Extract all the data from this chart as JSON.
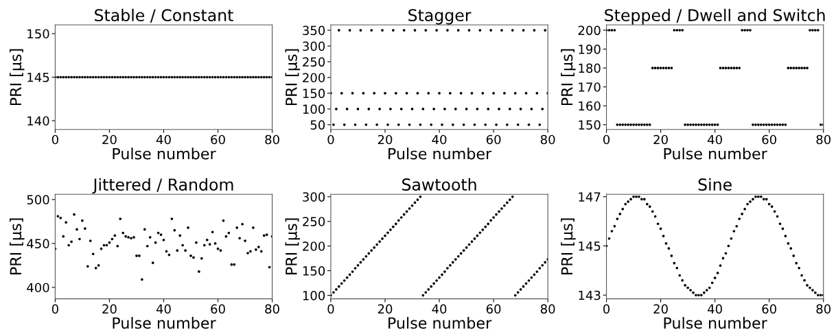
{
  "chart_data": [
    {
      "type": "scatter",
      "title": "Stable / Constant",
      "xlabel": "Pulse number",
      "ylabel": "PRI [µs]",
      "color": "#000000",
      "marker": "circle",
      "xlim": [
        0,
        80
      ],
      "xticks": [
        0,
        20,
        40,
        60,
        80
      ],
      "ylim": [
        139,
        151
      ],
      "yticks": [
        140,
        145,
        150
      ],
      "x": [
        0,
        1,
        2,
        3,
        4,
        5,
        6,
        7,
        8,
        9,
        10,
        11,
        12,
        13,
        14,
        15,
        16,
        17,
        18,
        19,
        20,
        21,
        22,
        23,
        24,
        25,
        26,
        27,
        28,
        29,
        30,
        31,
        32,
        33,
        34,
        35,
        36,
        37,
        38,
        39,
        40,
        41,
        42,
        43,
        44,
        45,
        46,
        47,
        48,
        49,
        50,
        51,
        52,
        53,
        54,
        55,
        56,
        57,
        58,
        59,
        60,
        61,
        62,
        63,
        64,
        65,
        66,
        67,
        68,
        69,
        70,
        71,
        72,
        73,
        74,
        75,
        76,
        77,
        78,
        79,
        80
      ],
      "values": [
        145,
        145,
        145,
        145,
        145,
        145,
        145,
        145,
        145,
        145,
        145,
        145,
        145,
        145,
        145,
        145,
        145,
        145,
        145,
        145,
        145,
        145,
        145,
        145,
        145,
        145,
        145,
        145,
        145,
        145,
        145,
        145,
        145,
        145,
        145,
        145,
        145,
        145,
        145,
        145,
        145,
        145,
        145,
        145,
        145,
        145,
        145,
        145,
        145,
        145,
        145,
        145,
        145,
        145,
        145,
        145,
        145,
        145,
        145,
        145,
        145,
        145,
        145,
        145,
        145,
        145,
        145,
        145,
        145,
        145,
        145,
        145,
        145,
        145,
        145,
        145,
        145,
        145,
        145,
        145,
        145
      ]
    },
    {
      "type": "scatter",
      "title": "Stagger",
      "xlabel": "Pulse number",
      "ylabel": "PRI [µs]",
      "color": "#000000",
      "marker": "circle",
      "xlim": [
        0,
        80
      ],
      "xticks": [
        0,
        20,
        40,
        60,
        80
      ],
      "ylim": [
        35,
        367
      ],
      "yticks": [
        50,
        100,
        150,
        200,
        250,
        300,
        350
      ],
      "x": [
        0,
        1,
        2,
        3,
        4,
        5,
        6,
        7,
        8,
        9,
        10,
        11,
        12,
        13,
        14,
        15,
        16,
        17,
        18,
        19,
        20,
        21,
        22,
        23,
        24,
        25,
        26,
        27,
        28,
        29,
        30,
        31,
        32,
        33,
        34,
        35,
        36,
        37,
        38,
        39,
        40,
        41,
        42,
        43,
        44,
        45,
        46,
        47,
        48,
        49,
        50,
        51,
        52,
        53,
        54,
        55,
        56,
        57,
        58,
        59,
        60,
        61,
        62,
        63,
        64,
        65,
        66,
        67,
        68,
        69,
        70,
        71,
        72,
        73,
        74,
        75,
        76,
        77,
        78,
        79,
        80
      ],
      "values": [
        150,
        50,
        100,
        350,
        150,
        50,
        100,
        350,
        150,
        50,
        100,
        350,
        150,
        50,
        100,
        350,
        150,
        50,
        100,
        350,
        150,
        50,
        100,
        350,
        150,
        50,
        100,
        350,
        150,
        50,
        100,
        350,
        150,
        50,
        100,
        350,
        150,
        50,
        100,
        350,
        150,
        50,
        100,
        350,
        150,
        50,
        100,
        350,
        150,
        50,
        100,
        350,
        150,
        50,
        100,
        350,
        150,
        50,
        100,
        350,
        150,
        50,
        100,
        350,
        150,
        50,
        100,
        350,
        150,
        50,
        100,
        350,
        150,
        50,
        100,
        350,
        150,
        50,
        100,
        350,
        150
      ]
    },
    {
      "type": "scatter",
      "title": "Stepped / Dwell and Switch",
      "xlabel": "Pulse number",
      "ylabel": "PRI [µs]",
      "color": "#000000",
      "marker": "circle",
      "xlim": [
        0,
        80
      ],
      "xticks": [
        0,
        20,
        40,
        60,
        80
      ],
      "ylim": [
        147.5,
        202.8
      ],
      "yticks": [
        150,
        160,
        170,
        180,
        190,
        200
      ],
      "x": [
        0,
        1,
        2,
        3,
        4,
        5,
        6,
        7,
        8,
        9,
        10,
        11,
        12,
        13,
        14,
        15,
        16,
        17,
        18,
        19,
        20,
        21,
        22,
        23,
        24,
        25,
        26,
        27,
        28,
        29,
        30,
        31,
        32,
        33,
        34,
        35,
        36,
        37,
        38,
        39,
        40,
        41,
        42,
        43,
        44,
        45,
        46,
        47,
        48,
        49,
        50,
        51,
        52,
        53,
        54,
        55,
        56,
        57,
        58,
        59,
        60,
        61,
        62,
        63,
        64,
        65,
        66,
        67,
        68,
        69,
        70,
        71,
        72,
        73,
        74,
        75,
        76,
        77,
        78,
        79,
        80
      ],
      "values": [
        200,
        200,
        200,
        200,
        150,
        150,
        150,
        150,
        150,
        150,
        150,
        150,
        150,
        150,
        150,
        150,
        150,
        180,
        180,
        180,
        180,
        180,
        180,
        180,
        180,
        200,
        200,
        200,
        200,
        150,
        150,
        150,
        150,
        150,
        150,
        150,
        150,
        150,
        150,
        150,
        150,
        150,
        180,
        180,
        180,
        180,
        180,
        180,
        180,
        180,
        200,
        200,
        200,
        200,
        150,
        150,
        150,
        150,
        150,
        150,
        150,
        150,
        150,
        150,
        150,
        150,
        150,
        180,
        180,
        180,
        180,
        180,
        180,
        180,
        180,
        200,
        200,
        200,
        200,
        150,
        150
      ]
    },
    {
      "type": "scatter",
      "title": "Jittered / Random",
      "xlabel": "Pulse number",
      "ylabel": "PRI [µs]",
      "color": "#000000",
      "marker": "circle",
      "xlim": [
        0,
        80
      ],
      "xticks": [
        0,
        20,
        40,
        60,
        80
      ],
      "ylim": [
        387,
        506
      ],
      "yticks": [
        400,
        450,
        500
      ],
      "x": [
        0,
        1,
        2,
        3,
        4,
        5,
        6,
        7,
        8,
        9,
        10,
        11,
        12,
        13,
        14,
        15,
        16,
        17,
        18,
        19,
        20,
        21,
        22,
        23,
        24,
        25,
        26,
        27,
        28,
        29,
        30,
        31,
        32,
        33,
        34,
        35,
        36,
        37,
        38,
        39,
        40,
        41,
        42,
        43,
        44,
        45,
        46,
        47,
        48,
        49,
        50,
        51,
        52,
        53,
        54,
        55,
        56,
        57,
        58,
        59,
        60,
        61,
        62,
        63,
        64,
        65,
        66,
        67,
        68,
        69,
        70,
        71,
        72,
        73,
        74,
        75,
        76,
        77,
        78,
        79,
        80
      ],
      "values": [
        444,
        481,
        479,
        458,
        474,
        448,
        452,
        483,
        466,
        455,
        476,
        467,
        424,
        453,
        438,
        422,
        425,
        444,
        448,
        448,
        451,
        455,
        459,
        447,
        478,
        462,
        458,
        457,
        456,
        457,
        436,
        436,
        409,
        466,
        447,
        457,
        428,
        451,
        462,
        460,
        454,
        441,
        437,
        478,
        465,
        442,
        459,
        448,
        442,
        468,
        436,
        434,
        451,
        418,
        433,
        448,
        454,
        449,
        463,
        450,
        444,
        442,
        476,
        458,
        462,
        426,
        426,
        468,
        456,
        472,
        453,
        439,
        441,
        468,
        443,
        446,
        441,
        459,
        460,
        423,
        458
      ]
    },
    {
      "type": "scatter",
      "title": "Sawtooth",
      "xlabel": "Pulse number",
      "ylabel": "PRI [µs]",
      "color": "#000000",
      "marker": "circle",
      "xlim": [
        0,
        80
      ],
      "xticks": [
        0,
        20,
        40,
        60,
        80
      ],
      "ylim": [
        93,
        305
      ],
      "yticks": [
        100,
        150,
        200,
        250,
        300
      ],
      "x": [
        0,
        1,
        2,
        3,
        4,
        5,
        6,
        7,
        8,
        9,
        10,
        11,
        12,
        13,
        14,
        15,
        16,
        17,
        18,
        19,
        20,
        21,
        22,
        23,
        24,
        25,
        26,
        27,
        28,
        29,
        30,
        31,
        32,
        33,
        34,
        35,
        36,
        37,
        38,
        39,
        40,
        41,
        42,
        43,
        44,
        45,
        46,
        47,
        48,
        49,
        50,
        51,
        52,
        53,
        54,
        55,
        56,
        57,
        58,
        59,
        60,
        61,
        62,
        63,
        64,
        65,
        66,
        67,
        68,
        69,
        70,
        71,
        72,
        73,
        74,
        75,
        76,
        77,
        78,
        79,
        80
      ],
      "values": [
        100,
        106,
        112,
        118,
        124,
        130,
        136,
        142,
        148,
        155,
        161,
        167,
        173,
        179,
        185,
        191,
        197,
        203,
        209,
        215,
        221,
        227,
        233,
        239,
        245,
        252,
        258,
        264,
        270,
        276,
        282,
        288,
        294,
        300,
        100,
        106,
        112,
        118,
        124,
        130,
        136,
        142,
        148,
        155,
        161,
        167,
        173,
        179,
        185,
        191,
        197,
        203,
        209,
        215,
        221,
        227,
        233,
        239,
        245,
        252,
        258,
        264,
        270,
        276,
        282,
        288,
        294,
        300,
        100,
        106,
        112,
        118,
        124,
        130,
        136,
        142,
        148,
        155,
        161,
        167,
        173
      ]
    },
    {
      "type": "scatter",
      "title": "Sine",
      "xlabel": "Pulse number",
      "ylabel": "PRI [µs]",
      "color": "#000000",
      "marker": "circle",
      "xlim": [
        0,
        80
      ],
      "xticks": [
        0,
        20,
        40,
        60,
        80
      ],
      "ylim": [
        142.85,
        147.1
      ],
      "yticks": [
        143,
        145,
        147
      ],
      "x": [
        0,
        1,
        2,
        3,
        4,
        5,
        6,
        7,
        8,
        9,
        10,
        11,
        12,
        13,
        14,
        15,
        16,
        17,
        18,
        19,
        20,
        21,
        22,
        23,
        24,
        25,
        26,
        27,
        28,
        29,
        30,
        31,
        32,
        33,
        34,
        35,
        36,
        37,
        38,
        39,
        40,
        41,
        42,
        43,
        44,
        45,
        46,
        47,
        48,
        49,
        50,
        51,
        52,
        53,
        54,
        55,
        56,
        57,
        58,
        59,
        60,
        61,
        62,
        63,
        64,
        65,
        66,
        67,
        68,
        69,
        70,
        71,
        72,
        73,
        74,
        75,
        76,
        77,
        78,
        79,
        80
      ],
      "values": [
        145.0,
        145.3,
        145.6,
        145.8,
        146.1,
        146.3,
        146.5,
        146.7,
        146.8,
        146.9,
        147.0,
        147.0,
        147.0,
        146.9,
        146.9,
        146.7,
        146.6,
        146.4,
        146.2,
        145.9,
        145.7,
        145.4,
        145.1,
        144.9,
        144.6,
        144.3,
        144.1,
        143.8,
        143.6,
        143.4,
        143.3,
        143.2,
        143.1,
        143.0,
        143.0,
        143.0,
        143.1,
        143.2,
        143.3,
        143.5,
        143.7,
        143.9,
        144.2,
        144.5,
        144.7,
        145.0,
        145.3,
        145.6,
        145.8,
        146.1,
        146.3,
        146.5,
        146.7,
        146.8,
        146.9,
        147.0,
        147.0,
        147.0,
        146.9,
        146.9,
        146.7,
        146.6,
        146.4,
        146.2,
        145.9,
        145.7,
        145.4,
        145.1,
        144.9,
        144.6,
        144.3,
        144.1,
        143.8,
        143.6,
        143.4,
        143.3,
        143.2,
        143.1,
        143.0,
        143.0,
        143.0
      ]
    }
  ]
}
